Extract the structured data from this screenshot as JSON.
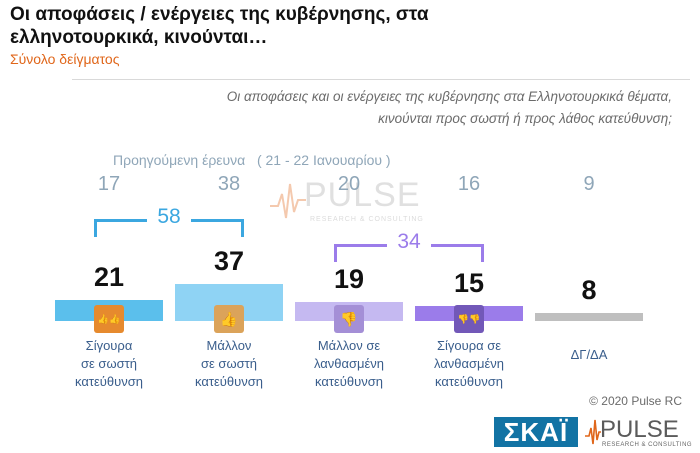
{
  "header": {
    "title": "Οι αποφάσεις / ενέργειες της κυβέρνησης, στα ελληνοτουρκικά, κινούνται…",
    "subtitle": "Σύνολο δείγματος",
    "question_line1": "Οι αποφάσεις και οι ενέργειες της κυβέρνησης στα Ελληνοτουρκικά θέματα,",
    "question_line2": "κινούνται προς σωστή ή προς λάθος κατεύθυνση;"
  },
  "previous_survey": {
    "label": "Προηγούμενη έρευνα",
    "date": "( 21 - 22  Ιανουαρίου )"
  },
  "watermark": {
    "brand": "PULSE",
    "tagline": "RESEARCH & CONSULTING"
  },
  "chart_data": {
    "type": "bar",
    "categories": [
      "Σίγουρα\nσε σωστή\nκατεύθυνση",
      "Μάλλον\nσε σωστή\nκατεύθυνση",
      "Μάλλον σε\nλανθασμένη\nκατεύθυνση",
      "Σίγουρα σε\nλανθασμένη\nκατεύθυνση",
      "ΔΓ/ΔΑ"
    ],
    "values": [
      21,
      37,
      19,
      15,
      8
    ],
    "previous_values": [
      17,
      38,
      20,
      16,
      9
    ],
    "colors": [
      "#5bbfec",
      "#8fd3f4",
      "#c5b9f1",
      "#9b7cea",
      "#bfbfbf"
    ],
    "icon_colors": [
      "#e68a2e",
      "#dba35a",
      "#a48fd6",
      "#7258b8"
    ],
    "icons": [
      "double-thumbs-up-icon",
      "thumb-up-icon",
      "thumb-down-icon",
      "double-thumbs-down-icon"
    ],
    "brackets": [
      {
        "value": "58",
        "color": "#3ba7e0"
      },
      {
        "value": "34",
        "color": "#9b7cea"
      }
    ]
  },
  "footer": {
    "copyright": "© 2020 Pulse RC"
  },
  "logos": {
    "skai": "ΣΚΑΪ",
    "pulse": "PULSE",
    "pulse_tagline": "RESEARCH & CONSULTING"
  }
}
